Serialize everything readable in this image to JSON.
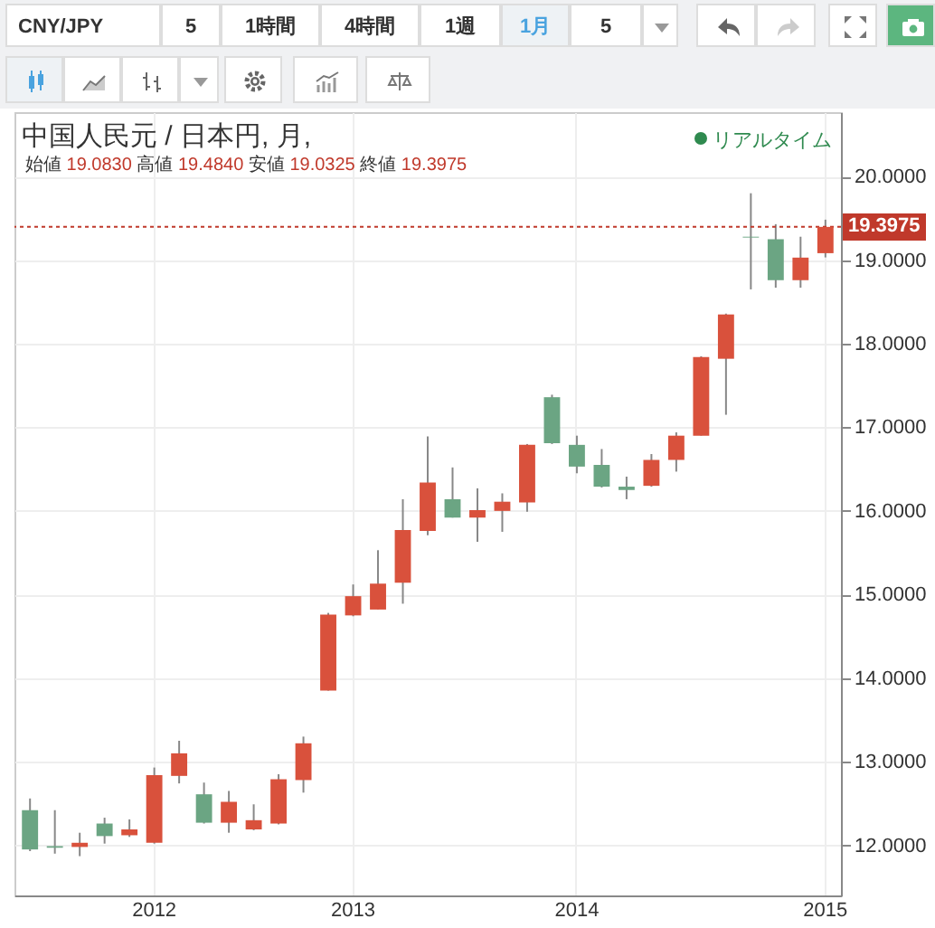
{
  "chart_data": {
    "type": "candlestick",
    "title": "中国人民元 / 日本円, 月,",
    "subtitle": "始値 19.0830 高値 19.4840 安値 19.0325 終値 19.3975",
    "annotations": [
      "リアルタイム",
      "CNY/JPY",
      "5",
      "1時間",
      "4時間",
      "1週",
      "1月",
      "5"
    ],
    "categories": [
      null,
      null,
      null,
      null,
      null,
      "2012",
      null,
      null,
      null,
      null,
      null,
      null,
      null,
      "2013",
      null,
      null,
      null,
      null,
      null,
      null,
      null,
      null,
      "2014",
      null,
      null,
      null,
      null,
      null,
      null,
      null,
      null,
      null,
      "2015"
    ],
    "ohlc": [
      [
        12.42,
        12.56,
        11.93,
        11.95
      ],
      [
        11.99,
        12.42,
        11.9,
        11.97
      ],
      [
        11.98,
        12.15,
        11.87,
        12.03
      ],
      [
        12.26,
        12.33,
        12.02,
        12.11
      ],
      [
        12.12,
        12.31,
        12.1,
        12.19
      ],
      [
        12.03,
        12.93,
        12.02,
        12.84
      ],
      [
        12.83,
        13.25,
        12.74,
        13.1
      ],
      [
        12.61,
        12.75,
        12.26,
        12.27
      ],
      [
        12.27,
        12.65,
        12.15,
        12.52
      ],
      [
        12.19,
        12.49,
        12.18,
        12.3
      ],
      [
        12.26,
        12.85,
        12.25,
        12.79
      ],
      [
        12.78,
        13.3,
        12.63,
        13.22
      ],
      [
        13.85,
        14.78,
        13.85,
        14.76
      ],
      [
        14.75,
        15.12,
        14.74,
        14.98
      ],
      [
        14.82,
        15.53,
        14.82,
        15.13
      ],
      [
        15.14,
        16.14,
        14.89,
        15.77
      ],
      [
        15.76,
        16.89,
        15.71,
        16.34
      ],
      [
        16.14,
        16.52,
        15.92,
        15.92
      ],
      [
        15.92,
        16.27,
        15.63,
        16.01
      ],
      [
        16.0,
        16.21,
        15.75,
        16.11
      ],
      [
        16.1,
        16.8,
        15.99,
        16.79
      ],
      [
        17.36,
        17.39,
        16.8,
        16.81
      ],
      [
        16.79,
        16.9,
        16.45,
        16.53
      ],
      [
        16.55,
        16.74,
        16.28,
        16.29
      ],
      [
        16.29,
        16.41,
        16.14,
        16.25
      ],
      [
        16.3,
        16.68,
        16.29,
        16.61
      ],
      [
        16.61,
        16.94,
        16.47,
        16.9
      ],
      [
        16.9,
        17.85,
        16.9,
        17.84
      ],
      [
        17.82,
        18.36,
        17.15,
        18.35
      ],
      [
        19.28,
        19.8,
        18.65,
        19.27
      ],
      [
        19.25,
        19.43,
        18.67,
        18.76
      ],
      [
        18.76,
        19.28,
        18.67,
        19.03
      ],
      [
        19.083,
        19.484,
        19.0325,
        19.3975
      ]
    ],
    "colors": [
      "#6ba583",
      "#6ba583",
      "#d9513c",
      "#6ba583",
      "#d9513c",
      "#d9513c",
      "#d9513c",
      "#6ba583",
      "#d9513c",
      "#d9513c",
      "#d9513c",
      "#d9513c",
      "#d9513c",
      "#d9513c",
      "#d9513c",
      "#d9513c",
      "#d9513c",
      "#6ba583",
      "#d9513c",
      "#d9513c",
      "#d9513c",
      "#6ba583",
      "#6ba583",
      "#6ba583",
      "#6ba583",
      "#d9513c",
      "#d9513c",
      "#d9513c",
      "#d9513c",
      "#6ba583",
      "#6ba583",
      "#d9513c",
      "#d9513c"
    ],
    "ylim": [
      11.4,
      20.77
    ],
    "yticks": [
      {
        "value": 12,
        "label": "12.0000"
      },
      {
        "value": 13,
        "label": "13.0000"
      },
      {
        "value": 14,
        "label": "14.0000"
      },
      {
        "value": 15,
        "label": "15.0000"
      },
      {
        "value": 16,
        "label": "16.0000"
      },
      {
        "value": 17,
        "label": "17.0000"
      },
      {
        "value": 18,
        "label": "18.0000"
      },
      {
        "value": 19,
        "label": "19.0000"
      },
      {
        "value": 20,
        "label": "20.0000"
      }
    ],
    "ref_lines": [
      {
        "axis": "y",
        "value": 19.3975,
        "label": "19.3975",
        "color": "#c0392b",
        "line_style": "dashed"
      }
    ],
    "grid": true
  }
}
